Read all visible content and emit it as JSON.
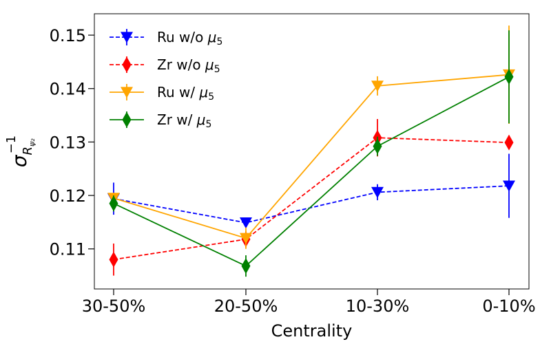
{
  "chart_data": {
    "type": "line",
    "title": "",
    "xlabel": "Centrality",
    "ylabel": "σ⁻¹ R ψ₂",
    "ylabel_parts": {
      "sigma": "σ",
      "exponent": "−1",
      "subscript": "R",
      "subsubscript": "ψ₂"
    },
    "categories": [
      "30-50%",
      "20-50%",
      "10-30%",
      "0-10%"
    ],
    "ylim": [
      0.1025,
      0.154
    ],
    "yticks": [
      0.11,
      0.12,
      0.13,
      0.14,
      0.15
    ],
    "ytick_labels": [
      "0.11",
      "0.12",
      "0.13",
      "0.14",
      "0.15"
    ],
    "grid": false,
    "legend_position": "top-left",
    "series": [
      {
        "name": "Ru w/o μ5",
        "label_text": "Ru w/o ",
        "label_symbol": "μ",
        "label_sub": "5",
        "color": "#0000ff",
        "linestyle": "dashed",
        "marker": "triangle-down",
        "values": [
          0.1194,
          0.1149,
          0.1206,
          0.1218
        ],
        "errors": [
          0.003,
          0.0008,
          0.0015,
          0.006
        ]
      },
      {
        "name": "Zr w/o μ5",
        "label_text": "Zr w/o ",
        "label_symbol": "μ",
        "label_sub": "5",
        "color": "#ff0000",
        "linestyle": "dashed",
        "marker": "thin-diamond",
        "values": [
          0.108,
          0.1118,
          0.1308,
          0.1299
        ],
        "errors": [
          0.003,
          0.0015,
          0.0035,
          0.0008
        ]
      },
      {
        "name": "Ru w/ μ5",
        "label_text": "Ru w/ ",
        "label_symbol": "μ",
        "label_sub": "5",
        "color": "#ffa500",
        "linestyle": "solid",
        "marker": "triangle-down",
        "values": [
          0.1195,
          0.112,
          0.1405,
          0.1426
        ],
        "errors": [
          0.001,
          0.002,
          0.0018,
          0.0092
        ]
      },
      {
        "name": "Zr w/ μ5",
        "label_text": "Zr w/ ",
        "label_symbol": "μ",
        "label_sub": "5",
        "color": "#008000",
        "linestyle": "solid",
        "marker": "thin-diamond",
        "values": [
          0.1185,
          0.1068,
          0.1292,
          0.1422
        ],
        "errors": [
          0.0015,
          0.002,
          0.0018,
          0.0087
        ]
      }
    ]
  }
}
